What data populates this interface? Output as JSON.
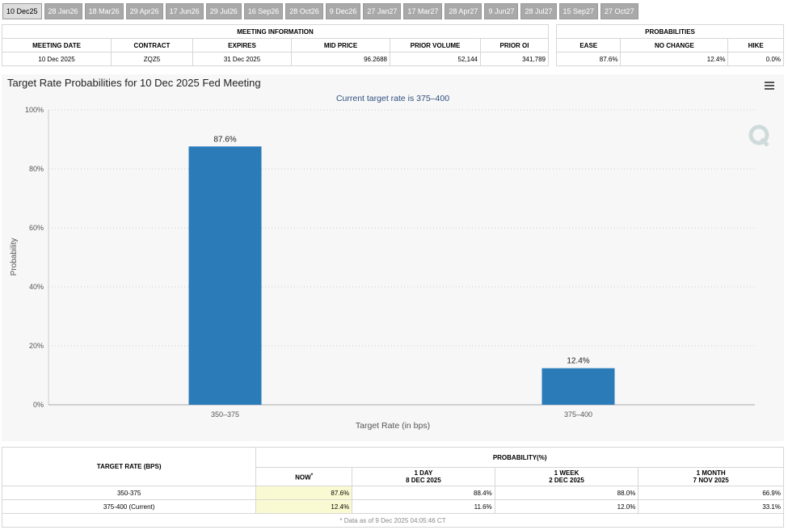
{
  "tabs": [
    "10 Dec25",
    "28 Jan26",
    "18 Mar26",
    "29 Apr26",
    "17 Jun26",
    "29 Jul26",
    "16 Sep26",
    "28 Oct26",
    "9 Dec26",
    "27 Jan27",
    "17 Mar27",
    "28 Apr27",
    "9 Jun27",
    "28 Jul27",
    "15 Sep27",
    "27 Oct27"
  ],
  "meeting_info": {
    "title": "MEETING INFORMATION",
    "headers": [
      "MEETING DATE",
      "CONTRACT",
      "EXPIRES",
      "MID PRICE",
      "PRIOR VOLUME",
      "PRIOR OI"
    ],
    "row": [
      "10 Dec 2025",
      "ZQZ5",
      "31 Dec 2025",
      "96.2688",
      "52,144",
      "341,789"
    ]
  },
  "probabilities": {
    "title": "PROBABILITIES",
    "headers": [
      "EASE",
      "NO CHANGE",
      "HIKE"
    ],
    "row": [
      "87.6%",
      "12.4%",
      "0.0%"
    ]
  },
  "chart_data": {
    "type": "bar",
    "title": "Target Rate Probabilities for 10 Dec 2025 Fed Meeting",
    "subtitle": "Current target rate is 375–400",
    "xlabel": "Target Rate (in bps)",
    "ylabel": "Probability",
    "categories": [
      "350–375",
      "375–400"
    ],
    "values": [
      87.6,
      12.4
    ],
    "value_labels": [
      "87.6%",
      "12.4%"
    ],
    "color": "#2b7bb9",
    "grid": true,
    "ylim": [
      0,
      100
    ],
    "yticks": [
      {
        "value": 0,
        "label": "0%"
      },
      {
        "value": 20,
        "label": "20%"
      },
      {
        "value": 40,
        "label": "40%"
      },
      {
        "value": 60,
        "label": "60%"
      },
      {
        "value": 80,
        "label": "80%"
      },
      {
        "value": 100,
        "label": "100%"
      }
    ]
  },
  "history": {
    "header": "TARGET RATE (BPS)",
    "group": "PROBABILITY(%)",
    "columns": [
      {
        "label": "NOW",
        "note": "*"
      },
      {
        "label": "1 DAY",
        "date": "8 DEC 2025"
      },
      {
        "label": "1 WEEK",
        "date": "2 DEC 2025"
      },
      {
        "label": "1 MONTH",
        "date": "7 NOV 2025"
      }
    ],
    "rows": [
      [
        "350-375",
        "87.6%",
        "88.4%",
        "88.0%",
        "66.9%"
      ],
      [
        "375-400 (Current)",
        "12.4%",
        "11.6%",
        "12.0%",
        "33.1%"
      ]
    ],
    "footnote": "* Data as of 9 Dec 2025 04:05:46 CT"
  }
}
